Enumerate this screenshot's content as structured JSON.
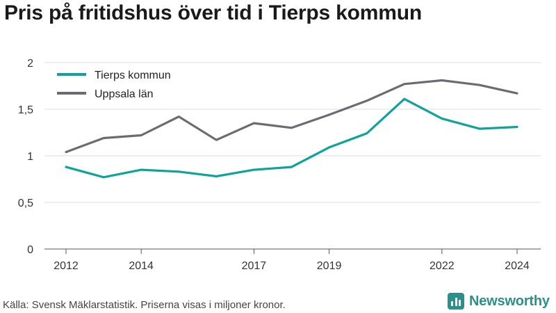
{
  "title": "Pris på fritidshus över tid i Tierps kommun",
  "source": "Källa: Svensk Mäklarstatistik. Priserna visas i miljoner kronor.",
  "brand": {
    "name": "Newsworthy",
    "icon": "bar-chart-logo-icon",
    "color": "#2d8f8a"
  },
  "chart_data": {
    "type": "line",
    "x": [
      2012,
      2013,
      2014,
      2015,
      2016,
      2017,
      2018,
      2019,
      2020,
      2021,
      2022,
      2023,
      2024
    ],
    "x_tick_values": [
      2012,
      2014,
      2017,
      2019,
      2022,
      2024
    ],
    "x_tick_labels": [
      "2012",
      "2014",
      "2017",
      "2019",
      "2022",
      "2024"
    ],
    "y_tick_values": [
      0,
      0.5,
      1,
      1.5,
      2
    ],
    "y_tick_labels": [
      "0",
      "0,5",
      "1",
      "1,5",
      "2"
    ],
    "ylim": [
      0,
      2
    ],
    "grid": "horizontal",
    "legend_position": "top-left",
    "series": [
      {
        "name": "Tierps kommun",
        "color": "#0fa39a",
        "values": [
          0.88,
          0.77,
          0.85,
          0.83,
          0.78,
          0.85,
          0.88,
          1.09,
          1.24,
          1.61,
          1.4,
          1.29,
          1.31
        ]
      },
      {
        "name": "Uppsala län",
        "color": "#6b6b73",
        "values": [
          1.04,
          1.19,
          1.22,
          1.42,
          1.17,
          1.35,
          1.3,
          1.44,
          1.59,
          1.77,
          1.81,
          1.76,
          1.67
        ]
      }
    ]
  }
}
